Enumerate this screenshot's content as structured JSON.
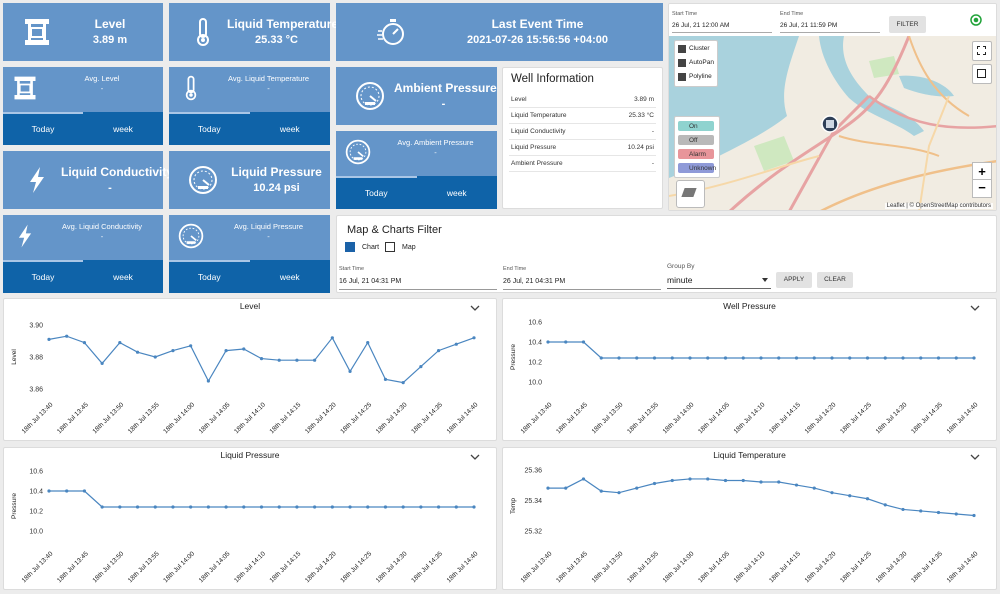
{
  "tiles": [
    {
      "title": "Level",
      "value": "3.89 m"
    },
    {
      "title": "Liquid Temperature",
      "value": "25.33 °C"
    },
    {
      "title": "Last Event Time",
      "value": "2021-07-26 15:56:56 +04:00"
    },
    {
      "title": "Ambient Pressure",
      "value": "-"
    },
    {
      "title": "Liquid Conductivity",
      "value": "-"
    },
    {
      "title": "Liquid Pressure",
      "value": "10.24 psi"
    }
  ],
  "averages": [
    {
      "title": "Avg. Level",
      "value": "-",
      "tabs": [
        "Today",
        "week"
      ]
    },
    {
      "title": "Avg. Liquid Temperature",
      "value": "-",
      "tabs": [
        "Today",
        "week"
      ]
    },
    {
      "title": "Avg. Ambient Pressure",
      "value": "-",
      "tabs": [
        "Today",
        "week"
      ]
    },
    {
      "title": "Avg. Liquid Conductivity",
      "value": "-",
      "tabs": [
        "Today",
        "week"
      ]
    },
    {
      "title": "Avg. Liquid Pressure",
      "value": "-",
      "tabs": [
        "Today",
        "week"
      ]
    }
  ],
  "well_info": {
    "title": "Well Information",
    "rows": [
      [
        "Level",
        "3.89 m"
      ],
      [
        "Liquid Temperature",
        "25.33 °C"
      ],
      [
        "Liquid Conductivity",
        "-"
      ],
      [
        "Liquid Pressure",
        "10.24 psi"
      ],
      [
        "Ambient Pressure",
        "-"
      ]
    ]
  },
  "map": {
    "start_label": "Start Time",
    "start_value": "26 Jul, 21 12:00 AM",
    "end_label": "End Time",
    "end_value": "26 Jul, 21 11:59 PM",
    "button": "FILTER",
    "options": [
      "Cluster",
      "AutoPan",
      "Polyline"
    ],
    "legend": [
      {
        "name": "On",
        "color": "#8fd3cf"
      },
      {
        "name": "Off",
        "color": "#b9b9b9"
      },
      {
        "name": "Alarm",
        "color": "#e8959a"
      },
      {
        "name": "Unknown",
        "color": "#8f9ad8"
      }
    ],
    "zoom_in": "+",
    "zoom_out": "−",
    "attribution": "Leaflet | © OpenStreetMap contributors"
  },
  "filter": {
    "title": "Map & Charts Filter",
    "checks": [
      "Chart",
      "Map"
    ],
    "start_label": "Start Time",
    "start_value": "16 Jul, 21 04:31 PM",
    "end_label": "End Time",
    "end_value": "26 Jul, 21 04:31 PM",
    "group_label": "Group By",
    "group_value": "minute",
    "apply": "APPLY",
    "clear": "CLEAR"
  },
  "chart_data": [
    {
      "type": "line",
      "title": "Level",
      "y_label": "Level",
      "color": "#4a86c0",
      "categories": [
        "18th Jul 13:40",
        null,
        "18th Jul 13:45",
        null,
        "18th Jul 13:50",
        null,
        "18th Jul 13:55",
        null,
        "18th Jul 14:00",
        null,
        "18th Jul 14:05",
        null,
        "18th Jul 14:10",
        null,
        "18th Jul 14:15",
        null,
        "18th Jul 14:20",
        null,
        "18th Jul 14:25",
        null,
        "18th Jul 14:30",
        null,
        "18th Jul 14:35",
        null,
        "18th Jul 14:40"
      ],
      "values": [
        3.891,
        3.893,
        3.889,
        3.876,
        3.889,
        3.883,
        3.88,
        3.884,
        3.887,
        3.865,
        3.884,
        3.885,
        3.879,
        3.878,
        3.878,
        3.878,
        3.892,
        3.871,
        3.889,
        3.866,
        3.864,
        3.874,
        3.884,
        3.888,
        3.892
      ],
      "ylim": [
        3.855,
        3.905
      ],
      "yticks": [
        3.86,
        3.88,
        {
          "value": 3.9,
          "label": "3.90"
        }
      ]
    },
    {
      "type": "line",
      "title": "Well Pressure",
      "y_label": "Pressure",
      "color": "#4a86c0",
      "categories": [
        "18th Jul 13:40",
        null,
        "18th Jul 13:45",
        null,
        "18th Jul 13:50",
        null,
        "18th Jul 13:55",
        null,
        "18th Jul 14:00",
        null,
        "18th Jul 14:05",
        null,
        "18th Jul 14:10",
        null,
        "18th Jul 14:15",
        null,
        "18th Jul 14:20",
        null,
        "18th Jul 14:25",
        null,
        "18th Jul 14:30",
        null,
        "18th Jul 14:35",
        null,
        "18th Jul 14:40"
      ],
      "values": [
        10.4,
        10.4,
        10.4,
        10.24,
        10.24,
        10.24,
        10.24,
        10.24,
        10.24,
        10.24,
        10.24,
        10.24,
        10.24,
        10.24,
        10.24,
        10.24,
        10.24,
        10.24,
        10.24,
        10.24,
        10.24,
        10.24,
        10.24,
        10.24,
        10.24
      ],
      "ylim": [
        9.85,
        10.65
      ],
      "yticks": [
        {
          "value": 10,
          "label": "10.0"
        },
        10.2,
        10.4,
        10.6
      ]
    },
    {
      "type": "line",
      "title": "Liquid Pressure",
      "y_label": "Pressure",
      "color": "#4a86c0",
      "categories": [
        "18th Jul 13:40",
        null,
        "18th Jul 13:45",
        null,
        "18th Jul 13:50",
        null,
        "18th Jul 13:55",
        null,
        "18th Jul 14:00",
        null,
        "18th Jul 14:05",
        null,
        "18th Jul 14:10",
        null,
        "18th Jul 14:15",
        null,
        "18th Jul 14:20",
        null,
        "18th Jul 14:25",
        null,
        "18th Jul 14:30",
        null,
        "18th Jul 14:35",
        null,
        "18th Jul 14:40"
      ],
      "values": [
        10.4,
        10.4,
        10.4,
        10.24,
        10.24,
        10.24,
        10.24,
        10.24,
        10.24,
        10.24,
        10.24,
        10.24,
        10.24,
        10.24,
        10.24,
        10.24,
        10.24,
        10.24,
        10.24,
        10.24,
        10.24,
        10.24,
        10.24,
        10.24,
        10.24
      ],
      "ylim": [
        9.85,
        10.65
      ],
      "yticks": [
        {
          "value": 10,
          "label": "10.0"
        },
        10.2,
        10.4,
        10.6
      ]
    },
    {
      "type": "line",
      "title": "Liquid Temperature",
      "y_label": "Temp",
      "color": "#4a86c0",
      "categories": [
        "18th Jul 13:40",
        null,
        "18th Jul 13:45",
        null,
        "18th Jul 13:50",
        null,
        "18th Jul 13:55",
        null,
        "18th Jul 14:00",
        null,
        "18th Jul 14:05",
        null,
        "18th Jul 14:10",
        null,
        "18th Jul 14:15",
        null,
        "18th Jul 14:20",
        null,
        "18th Jul 14:25",
        null,
        "18th Jul 14:30",
        null,
        "18th Jul 14:35",
        null,
        "18th Jul 14:40"
      ],
      "values": [
        25.348,
        25.348,
        25.354,
        25.346,
        25.345,
        25.348,
        25.351,
        25.353,
        25.354,
        25.354,
        25.353,
        25.353,
        25.352,
        25.352,
        25.35,
        25.348,
        25.345,
        25.343,
        25.341,
        25.337,
        25.334,
        25.333,
        25.332,
        25.331,
        25.33
      ],
      "ylim": [
        25.31,
        25.3625
      ],
      "yticks": [
        25.32,
        25.34,
        25.36
      ]
    }
  ]
}
